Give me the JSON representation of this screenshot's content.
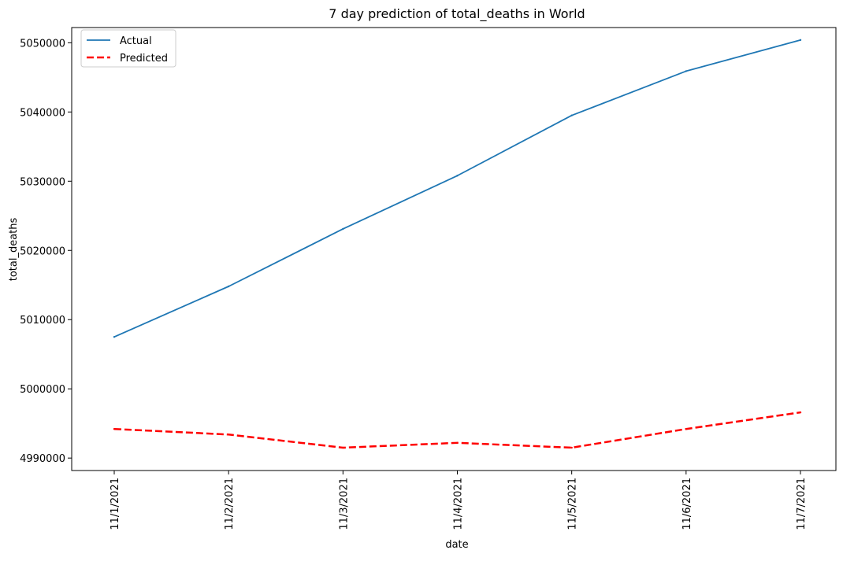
{
  "chart_data": {
    "type": "line",
    "title": "7 day prediction of total_deaths in World",
    "xlabel": "date",
    "ylabel": "total_deaths",
    "categories": [
      "11/1/2021",
      "11/2/2021",
      "11/3/2021",
      "11/4/2021",
      "11/5/2021",
      "11/6/2021",
      "11/7/2021"
    ],
    "yticks": [
      4990000,
      5000000,
      5010000,
      5020000,
      5030000,
      5040000,
      5050000
    ],
    "ylim": [
      4988200,
      5052200
    ],
    "grid": false,
    "legend_position": "upper-left",
    "series": [
      {
        "name": "Actual",
        "color": "#1f77b4",
        "style": "solid",
        "values": [
          5007500,
          5014800,
          5023100,
          5030800,
          5039500,
          5045900,
          5050400
        ]
      },
      {
        "name": "Predicted",
        "color": "#ff0000",
        "style": "dashed",
        "values": [
          4994200,
          4993400,
          4991500,
          4992200,
          4991500,
          4994200,
          4996600
        ]
      }
    ]
  }
}
